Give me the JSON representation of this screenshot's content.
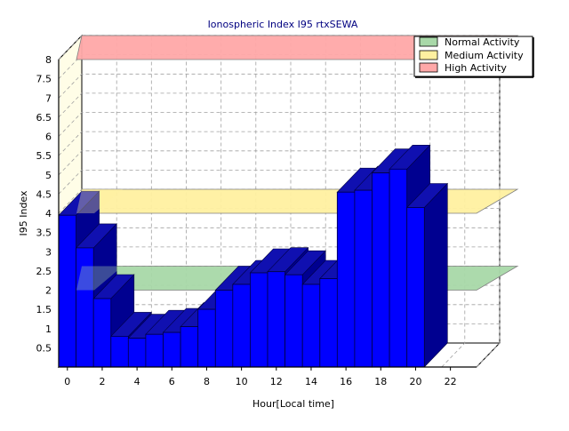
{
  "chart_data": {
    "type": "bar",
    "title": "Ionospheric Index I95 rtxSEWA",
    "xlabel": "Hour[Local time]",
    "ylabel": "I95 Index",
    "x_ticks": [
      "0",
      "2",
      "4",
      "6",
      "8",
      "10",
      "12",
      "14",
      "16",
      "18",
      "20",
      "22"
    ],
    "y_ticks": [
      "0.5",
      "1",
      "1.5",
      "2",
      "2.5",
      "3",
      "3.5",
      "4",
      "4.5",
      "5",
      "5.5",
      "6",
      "6.5",
      "7",
      "7.5",
      "8"
    ],
    "xlim": [
      0,
      24
    ],
    "ylim": [
      0,
      8
    ],
    "grid": true,
    "legend_position": "top-right",
    "series": [
      {
        "x": [
          0,
          1,
          2,
          3,
          4,
          5,
          6,
          7,
          8,
          9,
          10,
          11,
          12,
          13,
          14,
          15,
          16,
          17,
          18,
          19,
          20
        ],
        "values": [
          3.95,
          3.1,
          1.78,
          0.8,
          0.75,
          0.85,
          0.9,
          1.05,
          1.5,
          2.0,
          2.15,
          2.45,
          2.48,
          2.4,
          2.15,
          2.3,
          4.55,
          4.6,
          5.05,
          5.15,
          4.15
        ],
        "color": "#0000ff"
      }
    ],
    "bands": [
      {
        "label": "Normal Activity",
        "value": 2,
        "color": "#a8d8a8"
      },
      {
        "label": "Medium Activity",
        "value": 4,
        "color": "#fff0a0"
      },
      {
        "label": "High Activity",
        "value": 8,
        "color": "#ffa8a8"
      }
    ]
  }
}
